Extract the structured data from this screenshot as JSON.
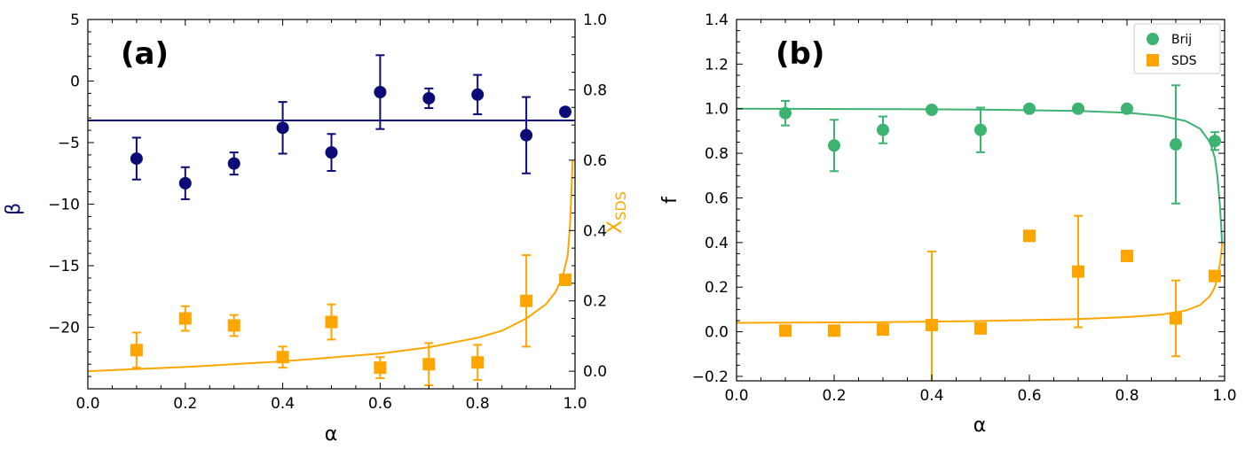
{
  "chart_data": [
    {
      "panel": "(a)",
      "type": "scatter",
      "xlabel": "α",
      "ylabel": "β",
      "y2label": "X",
      "y2label_sub": "SDS",
      "xlim": [
        0.0,
        1.0
      ],
      "ylim": [
        -25,
        5
      ],
      "y2lim": [
        -0.05,
        1.0
      ],
      "xticks": [
        0.0,
        0.2,
        0.4,
        0.6,
        0.8,
        1.0
      ],
      "yticks": [
        5,
        0,
        -5,
        -10,
        -15,
        -20
      ],
      "y2ticks": [
        0.0,
        0.2,
        0.4,
        0.6,
        0.8,
        1.0
      ],
      "colors": {
        "beta": "#0b0b78",
        "xsds": "#ffa500"
      },
      "series": [
        {
          "axis": "left",
          "marker": "circle",
          "x": [
            0.1,
            0.2,
            0.3,
            0.4,
            0.5,
            0.6,
            0.7,
            0.8,
            0.9,
            0.98
          ],
          "y": [
            -6.3,
            -8.3,
            -6.7,
            -3.8,
            -5.8,
            -0.9,
            -1.4,
            -1.1,
            -4.4,
            -2.5
          ],
          "err": [
            1.7,
            1.3,
            0.9,
            2.1,
            1.5,
            3.0,
            0.8,
            1.6,
            3.1,
            0.0
          ]
        },
        {
          "axis": "right",
          "marker": "square",
          "x": [
            0.1,
            0.2,
            0.3,
            0.4,
            0.5,
            0.6,
            0.7,
            0.8,
            0.9,
            0.98
          ],
          "y": [
            0.06,
            0.15,
            0.13,
            0.04,
            0.14,
            0.01,
            0.02,
            0.025,
            0.2,
            0.26
          ],
          "err": [
            0.05,
            0.035,
            0.03,
            0.03,
            0.05,
            0.03,
            0.06,
            0.05,
            0.13,
            0.015
          ]
        }
      ],
      "fit_lines": [
        {
          "axis": "left",
          "kind": "constant",
          "value": -3.2
        },
        {
          "axis": "right",
          "kind": "curve",
          "x": [
            0.0,
            0.2,
            0.4,
            0.6,
            0.7,
            0.8,
            0.85,
            0.9,
            0.94,
            0.96,
            0.975,
            0.985,
            0.99,
            0.995
          ],
          "y": [
            0.0,
            0.012,
            0.028,
            0.05,
            0.068,
            0.095,
            0.115,
            0.15,
            0.19,
            0.225,
            0.27,
            0.33,
            0.42,
            0.6
          ]
        }
      ]
    },
    {
      "panel": "(b)",
      "type": "scatter",
      "xlabel": "α",
      "ylabel": "f",
      "xlim": [
        0.0,
        1.0
      ],
      "ylim": [
        -0.22,
        1.4
      ],
      "xticks": [
        0.0,
        0.2,
        0.4,
        0.6,
        0.8,
        1.0
      ],
      "yticks": [
        -0.2,
        0.0,
        0.2,
        0.4,
        0.6,
        0.8,
        1.0,
        1.2,
        1.4
      ],
      "legend": {
        "position": "top-right",
        "entries": [
          "Brij",
          "SDS"
        ]
      },
      "colors": {
        "Brij": "#3cb371",
        "SDS": "#ffa500"
      },
      "series": [
        {
          "name": "Brij",
          "marker": "circle",
          "x": [
            0.1,
            0.2,
            0.3,
            0.4,
            0.5,
            0.6,
            0.7,
            0.8,
            0.9,
            0.98
          ],
          "y": [
            0.98,
            0.835,
            0.905,
            0.995,
            0.905,
            1.0,
            1.0,
            1.0,
            0.84,
            0.855
          ],
          "err": [
            0.055,
            0.115,
            0.06,
            0.0,
            0.1,
            0.0,
            0.0,
            0.0,
            0.265,
            0.04
          ]
        },
        {
          "name": "SDS",
          "marker": "square",
          "x": [
            0.1,
            0.2,
            0.3,
            0.4,
            0.5,
            0.6,
            0.7,
            0.8,
            0.9,
            0.98
          ],
          "y": [
            0.005,
            0.005,
            0.01,
            0.03,
            0.015,
            0.43,
            0.27,
            0.34,
            0.06,
            0.25
          ],
          "err": [
            0.0,
            0.0,
            0.0,
            0.33,
            0.0,
            0.0,
            0.25,
            0.0,
            0.17,
            0.0
          ]
        }
      ],
      "fit_lines": [
        {
          "series": "Brij",
          "kind": "curve",
          "x": [
            0.0,
            0.3,
            0.5,
            0.7,
            0.8,
            0.87,
            0.92,
            0.95,
            0.97,
            0.98,
            0.985,
            0.99,
            0.993,
            0.995
          ],
          "y": [
            1.0,
            0.998,
            0.996,
            0.99,
            0.982,
            0.968,
            0.945,
            0.91,
            0.85,
            0.78,
            0.7,
            0.58,
            0.47,
            0.38
          ]
        },
        {
          "series": "SDS",
          "kind": "curve",
          "x": [
            0.0,
            0.3,
            0.5,
            0.7,
            0.8,
            0.87,
            0.92,
            0.95,
            0.97,
            0.98,
            0.985,
            0.99,
            0.993,
            0.995
          ],
          "y": [
            0.04,
            0.043,
            0.048,
            0.057,
            0.066,
            0.077,
            0.095,
            0.12,
            0.16,
            0.2,
            0.24,
            0.3,
            0.35,
            0.4
          ]
        }
      ]
    }
  ]
}
